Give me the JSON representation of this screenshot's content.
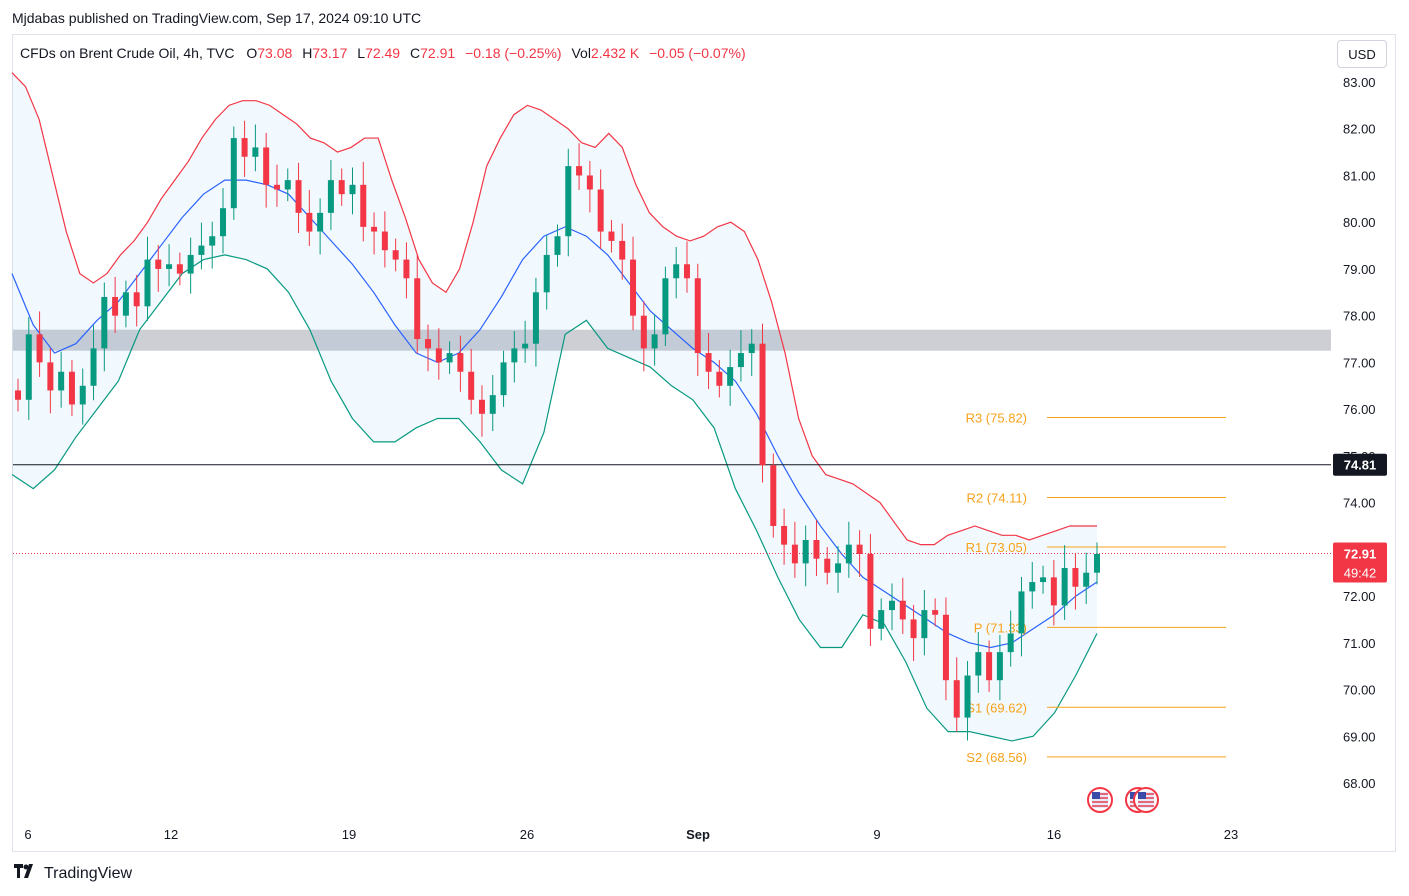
{
  "header": {
    "published": "Mjdabas published on TradingView.com, Sep 17, 2024 09:10 UTC",
    "symbol": "CFDs on Brent Crude Oil, 4h, TVC",
    "o_label": "O",
    "o_value": "73.08",
    "h_label": "H",
    "h_value": "73.17",
    "l_label": "L",
    "l_value": "72.49",
    "c_label": "C",
    "c_value": "72.91",
    "change": "−0.18 (−0.25%)",
    "vol_label": "Vol",
    "vol_value": "2.432 K",
    "vol_change": "−0.05 (−0.07%)",
    "currency": "USD"
  },
  "footer": {
    "brand": "TradingView"
  },
  "colors": {
    "up": "#089981",
    "down": "#f23645",
    "basis": "#2962ff",
    "upper": "#f23645",
    "lower": "#089981",
    "pivot": "#f7a21b"
  },
  "chart_data": {
    "type": "candlestick",
    "y_range": [
      67.5,
      83.4
    ],
    "y_ticks": [
      "83.00",
      "82.00",
      "81.00",
      "80.00",
      "79.00",
      "78.00",
      "77.00",
      "76.00",
      "75.00",
      "74.00",
      "73.00",
      "72.00",
      "71.00",
      "70.00",
      "69.00",
      "68.00"
    ],
    "x_ticks": [
      "6",
      "12",
      "19",
      "26",
      "Sep",
      "9",
      "16",
      "23"
    ],
    "current_price": "72.91",
    "countdown": "49:42",
    "hline_price": "74.81",
    "zone": [
      77.25,
      77.7
    ],
    "pivots": [
      {
        "label": "R3 (75.82)",
        "value": 75.82
      },
      {
        "label": "R2 (74.11)",
        "value": 74.11
      },
      {
        "label": "R1 (73.05)",
        "value": 73.05
      },
      {
        "label": "P (71.33)",
        "value": 71.33
      },
      {
        "label": "S1 (69.62)",
        "value": 69.62
      },
      {
        "label": "S2 (68.56)",
        "value": 68.56
      }
    ],
    "closes": [
      76.2,
      77.6,
      77.0,
      76.4,
      76.8,
      76.1,
      76.5,
      77.3,
      78.4,
      78.0,
      78.5,
      78.2,
      79.2,
      79.0,
      79.1,
      78.9,
      79.3,
      79.5,
      79.7,
      80.3,
      81.8,
      81.4,
      81.6,
      80.8,
      80.7,
      80.9,
      80.2,
      79.8,
      80.2,
      80.9,
      80.6,
      80.8,
      79.9,
      79.8,
      79.4,
      79.2,
      78.8,
      77.5,
      77.3,
      77.0,
      77.2,
      76.8,
      76.2,
      75.9,
      76.3,
      77.0,
      77.3,
      77.4,
      78.5,
      79.3,
      79.7,
      81.2,
      81.0,
      80.7,
      79.8,
      79.6,
      79.2,
      78.0,
      77.3,
      77.6,
      78.8,
      79.1,
      78.8,
      77.2,
      76.8,
      76.5,
      76.9,
      77.2,
      77.4,
      74.8,
      73.5,
      73.1,
      72.7,
      73.2,
      72.8,
      72.5,
      72.7,
      73.1,
      72.9,
      71.3,
      71.7,
      71.9,
      71.5,
      71.1,
      71.7,
      71.6,
      70.2,
      69.4,
      70.3,
      70.8,
      70.2,
      70.8,
      71.2,
      72.1,
      72.3,
      72.4,
      71.8,
      72.6,
      72.2,
      72.5,
      72.9
    ],
    "upper_band": [
      83.2,
      82.9,
      82.2,
      81.0,
      79.8,
      78.9,
      78.7,
      78.9,
      79.3,
      79.6,
      80.0,
      80.5,
      80.9,
      81.3,
      81.8,
      82.2,
      82.5,
      82.6,
      82.6,
      82.5,
      82.3,
      82.1,
      81.8,
      81.7,
      81.5,
      81.6,
      81.8,
      81.8,
      80.9,
      80.1,
      79.2,
      78.7,
      78.5,
      79.0,
      80.0,
      81.2,
      81.8,
      82.3,
      82.5,
      82.4,
      82.2,
      82.0,
      81.7,
      81.6,
      81.9,
      81.6,
      80.8,
      80.2,
      79.9,
      79.7,
      79.6,
      79.7,
      79.9,
      80.0,
      79.8,
      79.2,
      78.3,
      77.2,
      75.8,
      75.0,
      74.6,
      74.5,
      74.4,
      74.2,
      74.0,
      73.6,
      73.2,
      73.1,
      73.1,
      73.3,
      73.4,
      73.5,
      73.4,
      73.3,
      73.3,
      73.2,
      73.3,
      73.4,
      73.5,
      73.5,
      73.5
    ],
    "basis": [
      78.9,
      77.8,
      77.2,
      77.4,
      77.9,
      78.3,
      78.9,
      79.5,
      80.1,
      80.6,
      80.9,
      80.9,
      80.8,
      80.6,
      80.1,
      79.6,
      79.1,
      78.5,
      77.8,
      77.2,
      77.0,
      77.2,
      77.7,
      78.4,
      79.2,
      79.7,
      79.9,
      79.7,
      79.3,
      78.7,
      78.1,
      77.7,
      77.3,
      77.0,
      76.6,
      75.9,
      75.0,
      74.2,
      73.5,
      72.9,
      72.4,
      72.1,
      71.8,
      71.5,
      71.2,
      71.0,
      70.9,
      71.0,
      71.3,
      71.6,
      72.0,
      72.3
    ],
    "lower_band": [
      74.6,
      74.3,
      74.7,
      75.4,
      76.0,
      76.6,
      77.7,
      78.3,
      78.9,
      79.2,
      79.3,
      79.2,
      79.0,
      78.5,
      77.7,
      76.6,
      75.8,
      75.3,
      75.3,
      75.6,
      75.8,
      75.8,
      75.3,
      74.7,
      74.4,
      75.5,
      77.6,
      77.9,
      77.3,
      77.1,
      76.9,
      76.5,
      76.2,
      75.6,
      74.3,
      73.4,
      72.4,
      71.5,
      70.9,
      70.9,
      71.6,
      71.4,
      70.6,
      69.6,
      69.1,
      69.1,
      69.0,
      68.9,
      69.0,
      69.5,
      70.3,
      71.2
    ]
  }
}
